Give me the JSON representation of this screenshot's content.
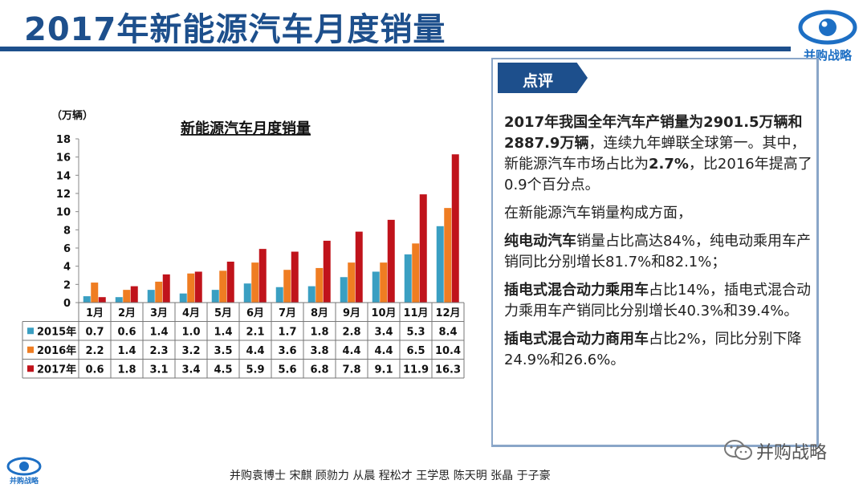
{
  "page": {
    "title": "2017年新能源汽车月度销量",
    "logo_text": "并购战略",
    "footer": "并购袁博士 宋麒 顾勍力 从晨 程松才 王学思 陈天明 张晶 于子豪",
    "watermark": "并购战略"
  },
  "colors": {
    "brand": "#1d4f8c",
    "s2015": "#3a9fc2",
    "s2016": "#ef7d22",
    "s2017": "#c0131b"
  },
  "chart_data": {
    "type": "bar",
    "title": "新能源汽车月度销量",
    "unit": "（万辆）",
    "categories": [
      "1月",
      "2月",
      "3月",
      "4月",
      "5月",
      "6月",
      "7月",
      "8月",
      "9月",
      "10月",
      "11月",
      "12月"
    ],
    "yticks": [
      "0",
      "2",
      "4",
      "6",
      "8",
      "10",
      "12",
      "14",
      "16",
      "18"
    ],
    "ylim": [
      0,
      18
    ],
    "grid": false,
    "legend": "data-table",
    "series": [
      {
        "name": "2015年",
        "values": [
          0.7,
          0.6,
          1.4,
          1.0,
          1.4,
          2.1,
          1.7,
          1.8,
          2.8,
          3.4,
          5.3,
          8.4
        ],
        "labels": [
          "0.7",
          "0.6",
          "1.4",
          "1.0",
          "1.4",
          "2.1",
          "1.7",
          "1.8",
          "2.8",
          "3.4",
          "5.3",
          "8.4"
        ]
      },
      {
        "name": "2016年",
        "values": [
          2.2,
          1.4,
          2.3,
          3.2,
          3.5,
          4.4,
          3.6,
          3.8,
          4.4,
          4.4,
          6.5,
          10.4
        ],
        "labels": [
          "2.2",
          "1.4",
          "2.3",
          "3.2",
          "3.5",
          "4.4",
          "3.6",
          "3.8",
          "4.4",
          "4.4",
          "6.5",
          "10.4"
        ]
      },
      {
        "name": "2017年",
        "values": [
          0.6,
          1.8,
          3.1,
          3.4,
          4.5,
          5.9,
          5.6,
          6.8,
          7.8,
          9.1,
          11.9,
          16.3
        ],
        "labels": [
          "0.6",
          "1.8",
          "3.1",
          "3.4",
          "4.5",
          "5.9",
          "5.6",
          "6.8",
          "7.8",
          "9.1",
          "11.9",
          "16.3"
        ]
      }
    ]
  },
  "commentary": {
    "tab_label": "点评",
    "p1_bold": "2017年我国全年汽车产销量为2901.5万辆和2887.9万辆",
    "p1_rest": "，连续九年蝉联全球第一。其中，新能源汽车市场占比为",
    "p1_bold2": "2.7%",
    "p1_rest2": "，比2016年提高了0.9个百分点。",
    "p2": "在新能源汽车销量构成方面，",
    "p3_bold": "纯电动汽车",
    "p3_rest": "销量占比高达84%，纯电动乘用车产销同比分别增长81.7%和82.1%；",
    "p4_bold": "插电式混合动力乘用车",
    "p4_rest": "占比14%，插电式混合动力乘用车产销同比分别增长40.3%和39.4%。",
    "p5_bold": "插电式混合动力商用车",
    "p5_rest": "占比2%，同比分别下降24.9%和26.6%。"
  }
}
